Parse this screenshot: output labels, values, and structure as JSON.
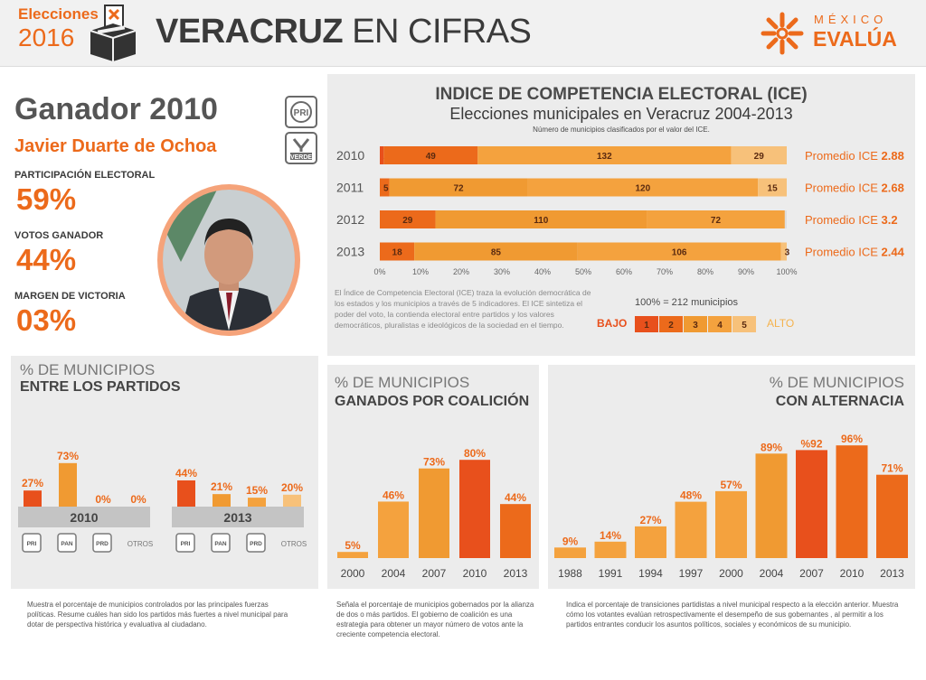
{
  "header": {
    "elecciones": "Elecciones",
    "year": "2016",
    "title_bold": "VERACRUZ",
    "title_light": "EN CIFRAS",
    "logo_top": "MÉXICO",
    "logo_bottom": "EVALÚA"
  },
  "winner": {
    "heading": "Ganador 2010",
    "name": "Javier Duarte de Ochoa",
    "stats": [
      {
        "label": "PARTICIPACIÓN ELECTORAL",
        "value": "59%"
      },
      {
        "label": "VOTOS GANADOR",
        "value": "44%"
      },
      {
        "label": "MARGEN DE VICTORIA",
        "value": "03%"
      }
    ],
    "party_logos": [
      "PRI",
      "VERDE"
    ]
  },
  "colors": {
    "level1": "#e8501c",
    "level2": "#ec6a1b",
    "level3": "#f09a32",
    "level4": "#f4a23e",
    "level5": "#f7c17a",
    "panel_bg": "#ececec"
  },
  "chart_data": [
    {
      "type": "bar",
      "orientation": "horizontal-stacked-100",
      "title": "INDICE DE COMPETENCIA ELECTORAL (ICE)",
      "subtitle": "Elecciones municipales en Veracruz 2004-2013",
      "note": "Número de municipios clasificados por el valor del ICE.",
      "categories": [
        "2010",
        "2011",
        "2012",
        "2013"
      ],
      "rows": [
        {
          "year": "2010",
          "segments": [
            {
              "level": 1,
              "value": 2
            },
            {
              "level": 2,
              "value": 49
            },
            {
              "level": 4,
              "value": 132
            },
            {
              "level": 5,
              "value": 29
            }
          ],
          "promedio_label": "Promedio ICE",
          "promedio_value": "2.88"
        },
        {
          "year": "2011",
          "segments": [
            {
              "level": 2,
              "value": 5
            },
            {
              "level": 3,
              "value": 72
            },
            {
              "level": 4,
              "value": 120
            },
            {
              "level": 5,
              "value": 15
            }
          ],
          "promedio_label": "Promedio ICE",
          "promedio_value": "2.68"
        },
        {
          "year": "2012",
          "segments": [
            {
              "level": 2,
              "value": 29
            },
            {
              "level": 3,
              "value": 110
            },
            {
              "level": 4,
              "value": 72
            }
          ],
          "promedio_label": "Promedio ICE",
          "promedio_value": "3.2"
        },
        {
          "year": "2013",
          "segments": [
            {
              "level": 2,
              "value": 18
            },
            {
              "level": 3,
              "value": 85
            },
            {
              "level": 4,
              "value": 106
            },
            {
              "level": 5,
              "value": 3
            }
          ],
          "promedio_label": "Promedio ICE",
          "promedio_value": "2.44"
        }
      ],
      "x_ticks": [
        "0%",
        "10%",
        "20%",
        "30%",
        "40%",
        "50%",
        "60%",
        "70%",
        "80%",
        "90%",
        "100%"
      ],
      "total": 212,
      "total_label": "100% = 212 municipios",
      "scale_low": "BAJO",
      "scale_high": "ALTO",
      "scale_levels": [
        "1",
        "2",
        "3",
        "4",
        "5"
      ],
      "description": "El Índice de Competencia Electoral (ICE) traza la evolución democrática de los estados y los municipios a través de 5 indicadores. El ICE sintetiza el poder del voto, la contienda electoral entre partidos y los valores democráticos, pluralistas e ideológicos de la sociedad en el tiempo."
    },
    {
      "type": "bar",
      "title_line1": "% DE MUNICIPIOS",
      "title_line2": "ENTRE LOS PARTIDOS",
      "groups": [
        {
          "name": "2010",
          "categories": [
            "PRI",
            "PAN",
            "PRD",
            "OTROS"
          ],
          "values": [
            27,
            73,
            0,
            0
          ],
          "labels": [
            "27%",
            "73%",
            "0%",
            "0%"
          ]
        },
        {
          "name": "2013",
          "categories": [
            "PRI",
            "PAN",
            "PRD",
            "OTROS"
          ],
          "values": [
            44,
            21,
            15,
            20
          ],
          "labels": [
            "44%",
            "21%",
            "15%",
            "20%"
          ]
        }
      ],
      "otros_label": "OTROS",
      "caption": "Muestra el porcentaje de municipios controlados por las principales fuerzas políticas. Resume cuáles han sido los partidos más fuertes a nivel municipal para dotar de perspectiva histórica y evaluativa al ciudadano."
    },
    {
      "type": "bar",
      "title_line1": "% DE MUNICIPIOS",
      "title_line2": "GANADOS POR COALICIÓN",
      "categories": [
        "2000",
        "2004",
        "2007",
        "2010",
        "2013"
      ],
      "values": [
        5,
        46,
        73,
        80,
        44
      ],
      "labels": [
        "5%",
        "46%",
        "73%",
        "80%",
        "44%"
      ],
      "caption": "Señala el porcentaje de municipios gobernados por la alianza de dos o más partidos. El gobierno de coalición es una estrategia para obtener un mayor número de votos ante la creciente competencia electoral."
    },
    {
      "type": "bar",
      "title_line1": "% DE MUNICIPIOS",
      "title_line2": "CON ALTERNACIA",
      "categories": [
        "1988",
        "1991",
        "1994",
        "1997",
        "2000",
        "2004",
        "2007",
        "2010",
        "2013"
      ],
      "values": [
        9,
        14,
        27,
        48,
        57,
        89,
        92,
        96,
        71
      ],
      "labels": [
        "9%",
        "14%",
        "27%",
        "48%",
        "57%",
        "89%",
        "%92",
        "96%",
        "71%"
      ],
      "caption": "Indica el porcentaje de transiciones partidistas a nivel municipal respecto a la elección anterior. Muestra cómo los votantes evalúan retrospectivamente el desempeño de sus gobernantes , al permitir a los partidos entrantes conducir los asuntos políticos, sociales y económicos de su municipio."
    }
  ]
}
